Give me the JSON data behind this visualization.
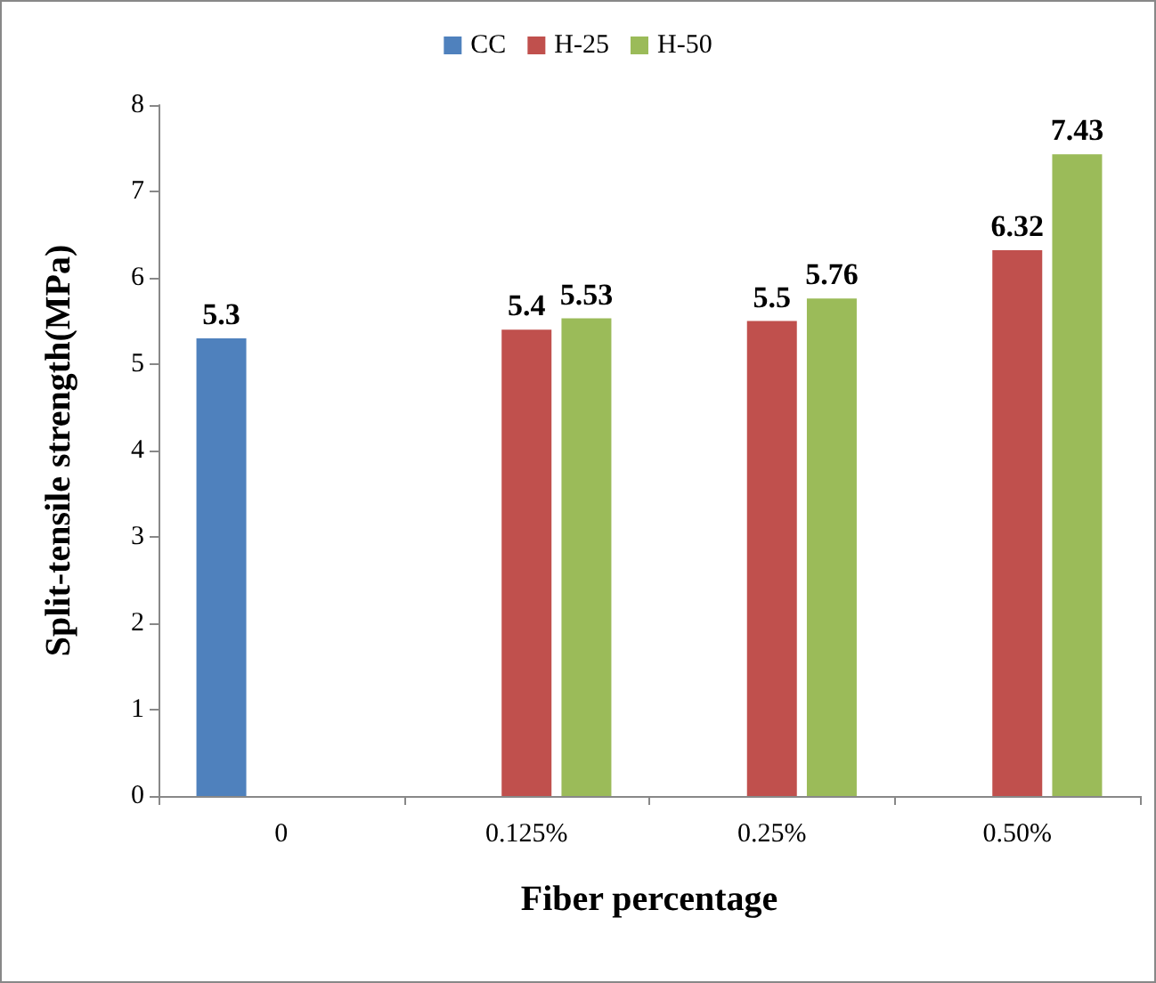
{
  "chart_data": {
    "type": "bar",
    "xlabel": "Fiber percentage",
    "ylabel": "Split-tensile strength(MPa)",
    "categories": [
      "0",
      "0.125%",
      "0.25%",
      "0.50%"
    ],
    "series": [
      {
        "name": "CC",
        "color": "#4f81bd",
        "values": [
          5.3,
          null,
          null,
          null
        ]
      },
      {
        "name": "H-25",
        "color": "#c0504d",
        "values": [
          null,
          5.4,
          5.5,
          6.32
        ]
      },
      {
        "name": "H-50",
        "color": "#9bbb59",
        "values": [
          null,
          5.53,
          5.76,
          7.43
        ]
      }
    ],
    "ylim": [
      0,
      8
    ],
    "yticks": [
      0,
      1,
      2,
      3,
      4,
      5,
      6,
      7,
      8
    ],
    "grid": false,
    "legend": "top",
    "data_labels": true
  }
}
